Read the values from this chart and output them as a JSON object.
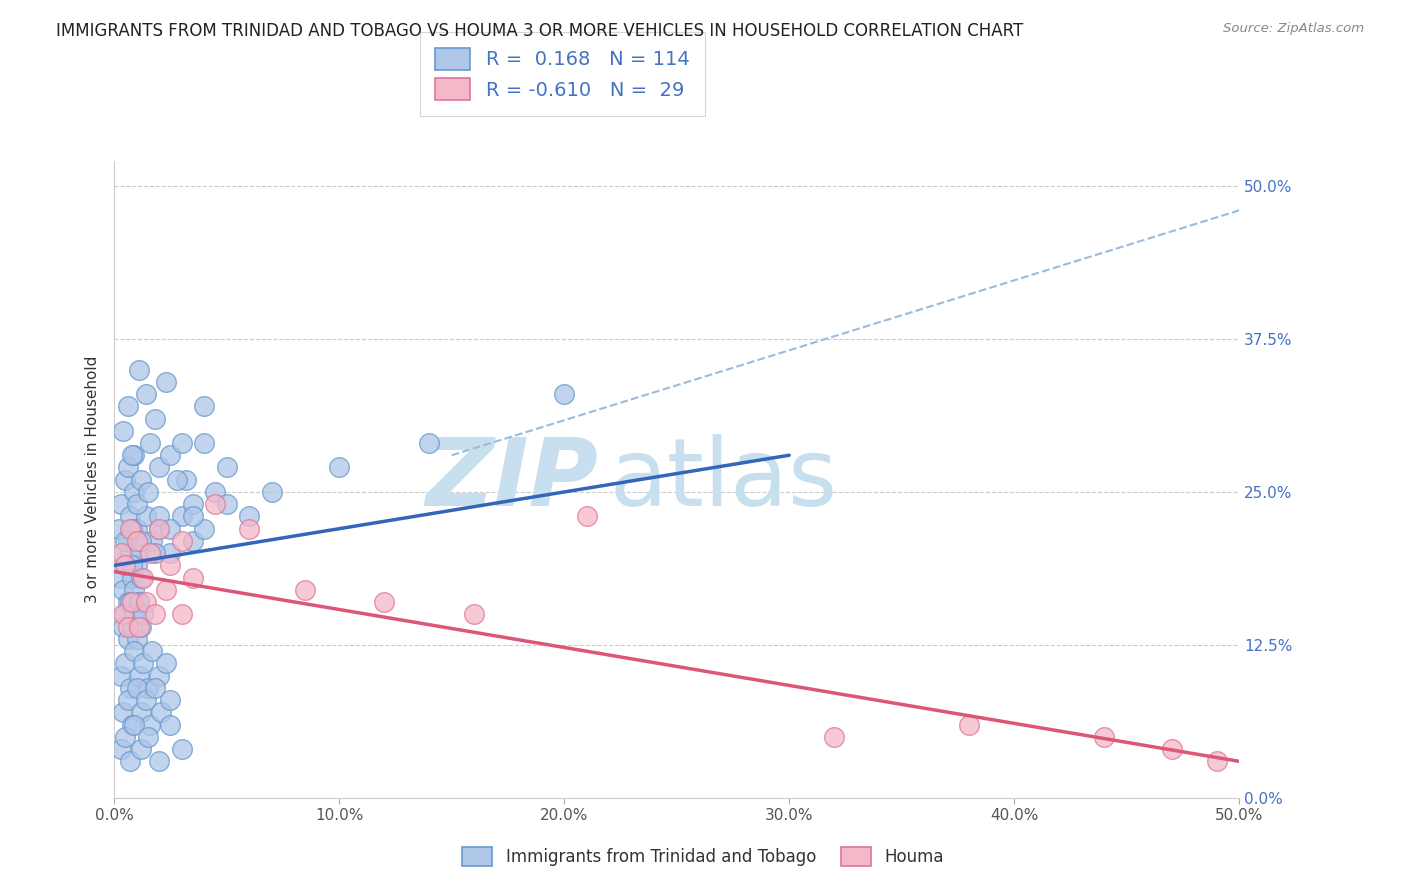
{
  "title": "IMMIGRANTS FROM TRINIDAD AND TOBAGO VS HOUMA 3 OR MORE VEHICLES IN HOUSEHOLD CORRELATION CHART",
  "source": "Source: ZipAtlas.com",
  "xlabel": "",
  "ylabel": "3 or more Vehicles in Household",
  "xlim": [
    0.0,
    50.0
  ],
  "ylim": [
    0.0,
    52.0
  ],
  "right_yticks": [
    0.0,
    12.5,
    25.0,
    37.5,
    50.0
  ],
  "xticks": [
    0.0,
    10.0,
    20.0,
    30.0,
    40.0,
    50.0
  ],
  "xtick_labels": [
    "0.0%",
    "10.0%",
    "20.0%",
    "30.0%",
    "40.0%",
    "50.0%"
  ],
  "blue_R": "0.168",
  "blue_N": "114",
  "pink_R": "-0.610",
  "pink_N": "29",
  "blue_color": "#aec6e8",
  "pink_color": "#f4b8c8",
  "blue_edge": "#6699cc",
  "pink_edge": "#dd7799",
  "trend_blue": "#3366bb",
  "trend_pink": "#dd5577",
  "trend_gray": "#99bbdd",
  "watermark_zip": "ZIP",
  "watermark_atlas": "atlas",
  "watermark_color": "#c8dff0",
  "legend_label_blue": "Immigrants from Trinidad and Tobago",
  "legend_label_pink": "Houma",
  "blue_scatter_x": [
    0.2,
    0.3,
    0.4,
    0.5,
    0.6,
    0.7,
    0.8,
    0.9,
    1.0,
    0.3,
    0.4,
    0.5,
    0.6,
    0.7,
    0.8,
    0.9,
    1.0,
    1.1,
    1.2,
    0.4,
    0.5,
    0.6,
    0.7,
    0.8,
    0.9,
    1.0,
    1.1,
    1.2,
    1.3,
    0.3,
    0.5,
    0.7,
    0.9,
    1.1,
    1.3,
    1.5,
    1.7,
    2.0,
    2.3,
    0.4,
    0.6,
    0.8,
    1.0,
    1.2,
    1.4,
    1.6,
    1.8,
    2.1,
    2.5,
    0.5,
    0.8,
    1.1,
    1.4,
    1.7,
    2.0,
    2.5,
    3.0,
    3.5,
    4.0,
    0.6,
    0.9,
    1.2,
    1.6,
    2.0,
    2.5,
    3.2,
    4.0,
    5.0,
    1.0,
    1.5,
    2.0,
    2.8,
    3.5,
    4.5,
    6.0,
    0.3,
    0.5,
    0.7,
    0.9,
    1.2,
    1.5,
    2.0,
    2.5,
    3.0,
    0.4,
    0.6,
    0.8,
    1.1,
    1.4,
    1.8,
    2.3,
    3.0,
    4.0,
    0.8,
    1.2,
    1.8,
    2.5,
    3.5,
    5.0,
    7.0,
    10.0,
    14.0,
    20.0
  ],
  "blue_scatter_y": [
    22.0,
    24.0,
    20.0,
    26.0,
    21.0,
    23.0,
    19.0,
    25.0,
    22.0,
    18.0,
    17.0,
    19.0,
    16.0,
    20.0,
    18.0,
    17.0,
    19.0,
    16.0,
    18.0,
    14.0,
    15.0,
    13.0,
    16.0,
    14.0,
    15.0,
    13.0,
    16.0,
    14.0,
    15.0,
    10.0,
    11.0,
    9.0,
    12.0,
    10.0,
    11.0,
    9.0,
    12.0,
    10.0,
    11.0,
    7.0,
    8.0,
    6.0,
    9.0,
    7.0,
    8.0,
    6.0,
    9.0,
    7.0,
    8.0,
    21.0,
    22.0,
    20.0,
    23.0,
    21.0,
    22.0,
    20.0,
    23.0,
    21.0,
    22.0,
    27.0,
    28.0,
    26.0,
    29.0,
    27.0,
    28.0,
    26.0,
    29.0,
    27.0,
    24.0,
    25.0,
    23.0,
    26.0,
    24.0,
    25.0,
    23.0,
    4.0,
    5.0,
    3.0,
    6.0,
    4.0,
    5.0,
    3.0,
    6.0,
    4.0,
    30.0,
    32.0,
    28.0,
    35.0,
    33.0,
    31.0,
    34.0,
    29.0,
    32.0,
    19.0,
    21.0,
    20.0,
    22.0,
    23.0,
    24.0,
    25.0,
    27.0,
    29.0,
    33.0
  ],
  "pink_scatter_x": [
    0.3,
    0.5,
    0.7,
    1.0,
    1.3,
    1.6,
    2.0,
    2.5,
    3.0,
    0.4,
    0.6,
    0.8,
    1.1,
    1.4,
    1.8,
    2.3,
    3.0,
    3.5,
    4.5,
    6.0,
    8.5,
    12.0,
    16.0,
    21.0,
    32.0,
    38.0,
    44.0,
    47.0,
    49.0
  ],
  "pink_scatter_y": [
    20.0,
    19.0,
    22.0,
    21.0,
    18.0,
    20.0,
    22.0,
    19.0,
    21.0,
    15.0,
    14.0,
    16.0,
    14.0,
    16.0,
    15.0,
    17.0,
    15.0,
    18.0,
    24.0,
    22.0,
    17.0,
    16.0,
    15.0,
    23.0,
    5.0,
    6.0,
    5.0,
    4.0,
    3.0
  ],
  "blue_trend_x": [
    0.0,
    30.0
  ],
  "blue_trend_y": [
    19.0,
    28.0
  ],
  "pink_trend_x": [
    0.0,
    50.0
  ],
  "pink_trend_y": [
    18.5,
    3.0
  ],
  "gray_trend_x": [
    15.0,
    50.0
  ],
  "gray_trend_y": [
    28.0,
    48.0
  ],
  "figsize": [
    14.06,
    8.92
  ],
  "dpi": 100
}
